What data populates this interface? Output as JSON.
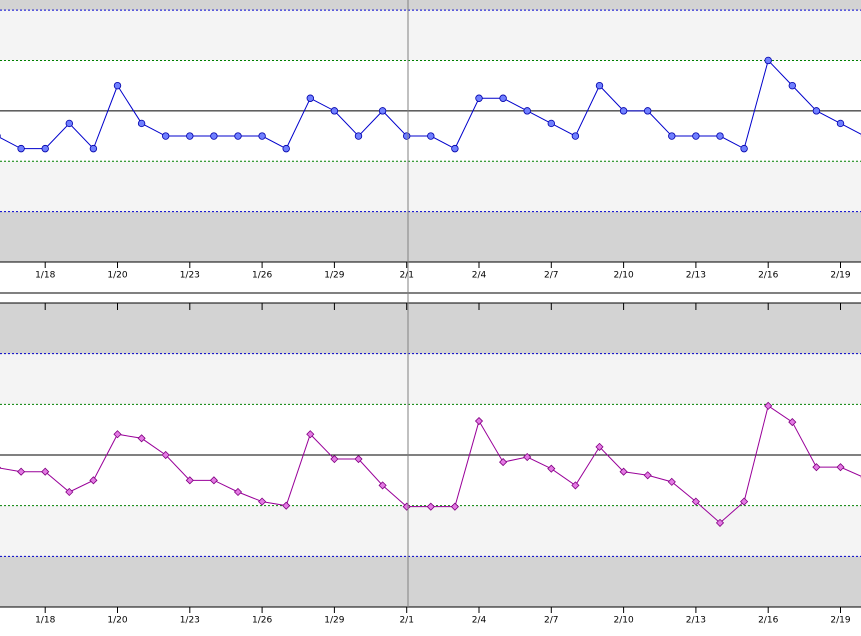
{
  "chart_data": [
    {
      "type": "line",
      "categories": [
        null,
        null,
        "1/18",
        null,
        null,
        "1/20",
        null,
        null,
        "1/23",
        null,
        null,
        "1/26",
        null,
        null,
        "1/29",
        null,
        null,
        "2/1",
        null,
        null,
        "2/4",
        null,
        null,
        "2/7",
        null,
        null,
        "2/10",
        null,
        null,
        "2/13",
        null,
        null,
        "2/16",
        null,
        null,
        "2/19",
        null
      ],
      "series": [
        {
          "color": "#0000cc",
          "values": [
            -0.5,
            -0.75,
            -0.75,
            -0.25,
            -0.75,
            0.5,
            -0.25,
            -0.5,
            -0.5,
            -0.5,
            -0.5,
            -0.5,
            -0.75,
            0.25,
            0,
            -0.5,
            0,
            -0.5,
            -0.5,
            -0.75,
            0.25,
            0.25,
            0,
            -0.25,
            -0.5,
            0.5,
            0,
            0,
            -0.5,
            -0.5,
            -0.5,
            -0.75,
            1.0,
            0.5,
            0,
            -0.25,
            -0.5
          ]
        }
      ],
      "ylim": [
        -3,
        2.2
      ],
      "center_line": 0,
      "inner_limits": [
        -1,
        1
      ],
      "outer_limits": [
        -2,
        2
      ]
    },
    {
      "type": "line",
      "categories": [
        null,
        null,
        "1/18",
        null,
        null,
        "1/20",
        null,
        null,
        "1/23",
        null,
        null,
        "1/26",
        null,
        null,
        "1/29",
        null,
        null,
        "2/1",
        null,
        null,
        "2/4",
        null,
        null,
        "2/7",
        null,
        null,
        "2/10",
        null,
        null,
        "2/13",
        null,
        null,
        "2/16",
        null,
        null,
        "2/19",
        null
      ],
      "series": [
        {
          "color": "#990099",
          "values": [
            -0.25,
            -0.33,
            -0.33,
            -0.73,
            -0.5,
            0.41,
            0.33,
            0,
            -0.5,
            -0.5,
            -0.73,
            -0.92,
            -1.0,
            0.41,
            -0.08,
            -0.08,
            -0.6,
            -1.02,
            -1.02,
            -1.02,
            0.67,
            -0.14,
            -0.04,
            -0.27,
            -0.6,
            0.16,
            -0.33,
            -0.4,
            -0.53,
            -0.92,
            -1.34,
            -0.92,
            0.97,
            0.65,
            -0.24,
            -0.24,
            -0.45
          ]
        }
      ],
      "ylim": [
        -3,
        3
      ],
      "center_line": 0,
      "inner_limits": [
        -1,
        1
      ],
      "outer_limits": [
        -2,
        2
      ]
    }
  ]
}
